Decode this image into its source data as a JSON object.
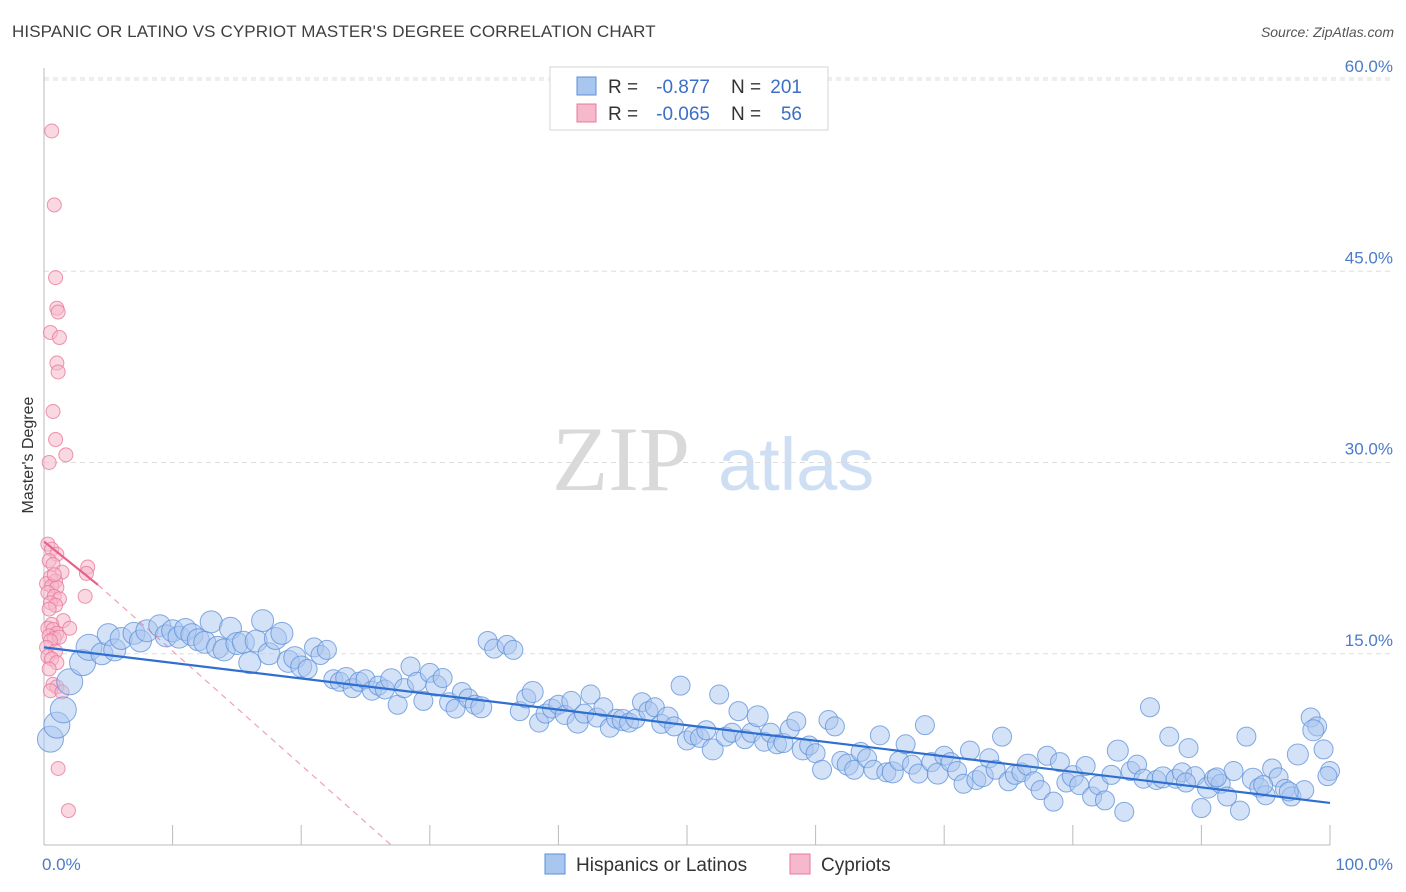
{
  "title": "HISPANIC OR LATINO VS CYPRIOT MASTER'S DEGREE CORRELATION CHART",
  "source": "Source: ZipAtlas.com",
  "watermark": {
    "zip": "ZIP",
    "atlas": "atlas"
  },
  "colors": {
    "blue_fill": "#a9c6ef",
    "blue_stroke": "#5b8fd9",
    "blue_line": "#2f6fd0",
    "pink_fill": "#f6b8cb",
    "pink_stroke": "#e8799c",
    "pink_line": "#e8618b",
    "grid": "#dddddd",
    "axis_text": "#4a7cc9"
  },
  "legend": {
    "rows": [
      {
        "r_label": "R =",
        "r_value": "-0.877",
        "n_label": "N =",
        "n_value": "201"
      },
      {
        "r_label": "R =",
        "r_value": "-0.065",
        "n_label": "N =",
        "n_value": "56"
      }
    ]
  },
  "chart_data": {
    "type": "scatter",
    "title": "HISPANIC OR LATINO VS CYPRIOT MASTER'S DEGREE CORRELATION CHART",
    "xlabel": "",
    "ylabel": "Master's Degree",
    "xlim": [
      0,
      100
    ],
    "ylim": [
      0,
      62
    ],
    "x_tick_labels": [
      "0.0%",
      "100.0%"
    ],
    "y_ticks": [
      15,
      30,
      45,
      60
    ],
    "y_tick_labels": [
      "15.0%",
      "30.0%",
      "45.0%",
      "60.0%"
    ],
    "series": [
      {
        "name": "Hispanics or Latinos",
        "r": -0.877,
        "n": 201,
        "trend": {
          "x0": 0,
          "y0": 15.5,
          "x1": 100,
          "y1": 3.3
        },
        "points": [
          [
            0.5,
            8.3
          ],
          [
            1.0,
            9.4
          ],
          [
            1.5,
            10.6
          ],
          [
            2.0,
            12.8
          ],
          [
            3.0,
            14.3
          ],
          [
            3.5,
            15.5
          ],
          [
            4.5,
            15.0
          ],
          [
            5.0,
            16.5
          ],
          [
            5.5,
            15.3
          ],
          [
            6.0,
            16.2
          ],
          [
            7.0,
            16.6
          ],
          [
            7.5,
            16.0
          ],
          [
            8.0,
            16.8
          ],
          [
            9.0,
            17.2
          ],
          [
            9.5,
            16.4
          ],
          [
            10.0,
            16.8
          ],
          [
            10.5,
            16.3
          ],
          [
            11.0,
            16.9
          ],
          [
            11.5,
            16.5
          ],
          [
            12.0,
            16.1
          ],
          [
            12.5,
            15.9
          ],
          [
            13.0,
            17.5
          ],
          [
            13.5,
            15.5
          ],
          [
            14.0,
            15.3
          ],
          [
            14.5,
            17.0
          ],
          [
            15.0,
            15.8
          ],
          [
            15.5,
            15.9
          ],
          [
            16.0,
            14.3
          ],
          [
            16.5,
            16.0
          ],
          [
            17.0,
            17.6
          ],
          [
            17.5,
            15.0
          ],
          [
            18.0,
            16.2
          ],
          [
            18.5,
            16.6
          ],
          [
            19.0,
            14.4
          ],
          [
            19.5,
            14.7
          ],
          [
            20.0,
            14.0
          ],
          [
            20.5,
            13.8
          ],
          [
            21.0,
            15.5
          ],
          [
            21.5,
            14.9
          ],
          [
            22.0,
            15.3
          ],
          [
            22.5,
            13.0
          ],
          [
            23.0,
            12.8
          ],
          [
            23.5,
            13.1
          ],
          [
            24.0,
            12.3
          ],
          [
            24.5,
            12.8
          ],
          [
            25.0,
            13.0
          ],
          [
            25.5,
            12.1
          ],
          [
            26.0,
            12.5
          ],
          [
            26.5,
            12.2
          ],
          [
            27.0,
            13.0
          ],
          [
            27.5,
            11.0
          ],
          [
            28.0,
            12.3
          ],
          [
            28.5,
            14.0
          ],
          [
            29.0,
            12.8
          ],
          [
            29.5,
            11.3
          ],
          [
            30.0,
            13.5
          ],
          [
            30.5,
            12.5
          ],
          [
            31.0,
            13.1
          ],
          [
            31.5,
            11.2
          ],
          [
            32.0,
            10.7
          ],
          [
            32.5,
            12.0
          ],
          [
            33.0,
            11.5
          ],
          [
            33.5,
            11.0
          ],
          [
            34.0,
            10.8
          ],
          [
            34.5,
            16.0
          ],
          [
            35.0,
            15.4
          ],
          [
            36.0,
            15.7
          ],
          [
            36.5,
            15.3
          ],
          [
            37.0,
            10.5
          ],
          [
            37.5,
            11.5
          ],
          [
            38.0,
            12.0
          ],
          [
            38.5,
            9.6
          ],
          [
            39.0,
            10.3
          ],
          [
            39.5,
            10.7
          ],
          [
            40.0,
            11.0
          ],
          [
            40.5,
            10.2
          ],
          [
            41.0,
            11.3
          ],
          [
            41.5,
            9.6
          ],
          [
            42.0,
            10.3
          ],
          [
            42.5,
            11.8
          ],
          [
            43.0,
            10.0
          ],
          [
            43.5,
            10.8
          ],
          [
            44.0,
            9.2
          ],
          [
            44.5,
            9.9
          ],
          [
            45.0,
            9.8
          ],
          [
            45.5,
            9.6
          ],
          [
            46.0,
            9.9
          ],
          [
            46.5,
            11.2
          ],
          [
            47.0,
            10.5
          ],
          [
            47.5,
            10.8
          ],
          [
            48.0,
            9.5
          ],
          [
            48.5,
            10.0
          ],
          [
            49.0,
            9.3
          ],
          [
            49.5,
            12.5
          ],
          [
            50.0,
            8.2
          ],
          [
            50.5,
            8.6
          ],
          [
            51.0,
            8.4
          ],
          [
            51.5,
            9.0
          ],
          [
            52.0,
            7.5
          ],
          [
            52.5,
            11.8
          ],
          [
            53.0,
            8.5
          ],
          [
            53.5,
            8.8
          ],
          [
            54.0,
            10.5
          ],
          [
            54.5,
            8.3
          ],
          [
            55.0,
            8.8
          ],
          [
            55.5,
            10.1
          ],
          [
            56.0,
            8.1
          ],
          [
            56.5,
            8.8
          ],
          [
            57.0,
            7.9
          ],
          [
            57.5,
            8.0
          ],
          [
            58.0,
            9.1
          ],
          [
            58.5,
            9.7
          ],
          [
            59.0,
            7.5
          ],
          [
            59.5,
            7.8
          ],
          [
            60.0,
            7.2
          ],
          [
            60.5,
            5.9
          ],
          [
            61.0,
            9.8
          ],
          [
            61.5,
            9.3
          ],
          [
            62.0,
            6.6
          ],
          [
            62.5,
            6.3
          ],
          [
            63.0,
            5.9
          ],
          [
            63.5,
            7.3
          ],
          [
            64.0,
            6.8
          ],
          [
            64.5,
            5.9
          ],
          [
            65.0,
            8.6
          ],
          [
            65.5,
            5.7
          ],
          [
            66.0,
            5.7
          ],
          [
            66.5,
            6.6
          ],
          [
            67.0,
            7.9
          ],
          [
            67.5,
            6.3
          ],
          [
            68.0,
            5.6
          ],
          [
            68.5,
            9.4
          ],
          [
            69.0,
            6.5
          ],
          [
            69.5,
            5.6
          ],
          [
            70.0,
            7.0
          ],
          [
            70.5,
            6.5
          ],
          [
            71.0,
            5.8
          ],
          [
            71.5,
            4.8
          ],
          [
            72.0,
            7.4
          ],
          [
            72.5,
            5.1
          ],
          [
            73.0,
            5.4
          ],
          [
            73.5,
            6.8
          ],
          [
            74.0,
            5.9
          ],
          [
            74.5,
            8.5
          ],
          [
            75.0,
            5.0
          ],
          [
            75.5,
            5.5
          ],
          [
            76.0,
            5.7
          ],
          [
            76.5,
            6.3
          ],
          [
            77.0,
            5.0
          ],
          [
            77.5,
            4.3
          ],
          [
            78.0,
            7.0
          ],
          [
            78.5,
            3.4
          ],
          [
            79.0,
            6.5
          ],
          [
            79.5,
            4.9
          ],
          [
            80.0,
            5.4
          ],
          [
            80.5,
            4.7
          ],
          [
            81.0,
            6.2
          ],
          [
            81.5,
            3.8
          ],
          [
            82.0,
            4.7
          ],
          [
            82.5,
            3.5
          ],
          [
            83.0,
            5.5
          ],
          [
            83.5,
            7.4
          ],
          [
            84.0,
            2.6
          ],
          [
            84.5,
            5.8
          ],
          [
            85.0,
            6.3
          ],
          [
            85.5,
            5.2
          ],
          [
            86.0,
            10.8
          ],
          [
            86.5,
            5.1
          ],
          [
            87.0,
            5.3
          ],
          [
            87.5,
            8.5
          ],
          [
            88.0,
            5.2
          ],
          [
            88.5,
            5.7
          ],
          [
            89.0,
            7.6
          ],
          [
            89.5,
            5.4
          ],
          [
            90.0,
            2.9
          ],
          [
            90.5,
            4.5
          ],
          [
            91.0,
            5.2
          ],
          [
            91.5,
            4.8
          ],
          [
            92.0,
            3.8
          ],
          [
            92.5,
            5.8
          ],
          [
            93.0,
            2.7
          ],
          [
            93.5,
            8.5
          ],
          [
            94.0,
            5.2
          ],
          [
            94.5,
            4.5
          ],
          [
            95.0,
            3.9
          ],
          [
            95.5,
            6.0
          ],
          [
            96.0,
            5.3
          ],
          [
            96.5,
            4.4
          ],
          [
            97.0,
            3.8
          ],
          [
            97.5,
            7.1
          ],
          [
            98.0,
            4.3
          ],
          [
            98.5,
            10.0
          ],
          [
            99.0,
            9.3
          ],
          [
            99.5,
            7.5
          ],
          [
            100.0,
            5.8
          ],
          [
            99.8,
            5.4
          ],
          [
            98.7,
            9.0
          ],
          [
            96.8,
            4.2
          ],
          [
            94.8,
            4.7
          ],
          [
            91.2,
            5.3
          ],
          [
            88.8,
            4.9
          ]
        ]
      },
      {
        "name": "Cypriots",
        "r": -0.065,
        "n": 56,
        "trend_solid": {
          "x0": 0,
          "y0": 23.8,
          "x1": 4.2,
          "y1": 20.4
        },
        "trend_dashed": {
          "x0": 4.2,
          "y0": 20.4,
          "x1": 27,
          "y1": 0
        },
        "points": [
          [
            0.6,
            56.0
          ],
          [
            0.8,
            50.2
          ],
          [
            0.9,
            44.5
          ],
          [
            1.0,
            42.1
          ],
          [
            1.1,
            41.8
          ],
          [
            0.5,
            40.2
          ],
          [
            1.2,
            39.8
          ],
          [
            1.0,
            37.8
          ],
          [
            1.1,
            37.1
          ],
          [
            0.7,
            34.0
          ],
          [
            0.9,
            31.8
          ],
          [
            1.7,
            30.6
          ],
          [
            0.4,
            30.0
          ],
          [
            0.3,
            23.6
          ],
          [
            0.6,
            23.2
          ],
          [
            1.0,
            22.8
          ],
          [
            0.4,
            22.3
          ],
          [
            0.7,
            22.0
          ],
          [
            1.4,
            21.4
          ],
          [
            0.5,
            21.0
          ],
          [
            0.9,
            20.7
          ],
          [
            0.2,
            20.5
          ],
          [
            0.6,
            20.3
          ],
          [
            1.0,
            20.2
          ],
          [
            0.3,
            19.8
          ],
          [
            0.8,
            19.5
          ],
          [
            1.2,
            19.3
          ],
          [
            0.5,
            19.0
          ],
          [
            0.9,
            18.8
          ],
          [
            0.4,
            18.5
          ],
          [
            3.4,
            21.8
          ],
          [
            3.3,
            21.3
          ],
          [
            3.2,
            19.5
          ],
          [
            1.5,
            17.6
          ],
          [
            0.6,
            17.3
          ],
          [
            0.3,
            17.0
          ],
          [
            0.7,
            16.9
          ],
          [
            1.0,
            16.6
          ],
          [
            0.4,
            16.4
          ],
          [
            0.8,
            16.2
          ],
          [
            1.2,
            16.3
          ],
          [
            0.5,
            16.0
          ],
          [
            0.2,
            15.5
          ],
          [
            0.9,
            15.2
          ],
          [
            0.3,
            14.8
          ],
          [
            0.6,
            14.6
          ],
          [
            1.0,
            14.3
          ],
          [
            0.4,
            13.8
          ],
          [
            0.7,
            12.6
          ],
          [
            1.0,
            12.4
          ],
          [
            0.5,
            12.1
          ],
          [
            1.4,
            12.0
          ],
          [
            2.0,
            17.0
          ],
          [
            1.1,
            6.0
          ],
          [
            1.9,
            2.7
          ],
          [
            0.8,
            21.2
          ]
        ]
      }
    ]
  },
  "bottom_legend": [
    {
      "label": "Hispanics or Latinos"
    },
    {
      "label": "Cypriots"
    }
  ]
}
